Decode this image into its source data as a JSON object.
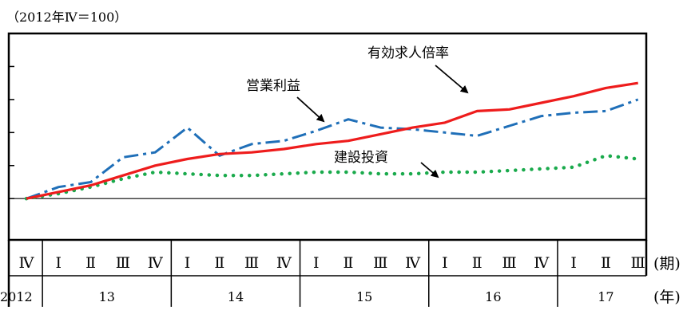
{
  "chart_data": {
    "type": "line",
    "title": "",
    "unit_label": "（2012年Ⅳ＝100）",
    "xlabel": "",
    "ylabel": "",
    "x_quarter_labels": [
      "Ⅳ",
      "Ⅰ",
      "Ⅱ",
      "Ⅲ",
      "Ⅳ",
      "Ⅰ",
      "Ⅱ",
      "Ⅲ",
      "Ⅳ",
      "Ⅰ",
      "Ⅱ",
      "Ⅲ",
      "Ⅳ",
      "Ⅰ",
      "Ⅱ",
      "Ⅲ",
      "Ⅳ",
      "Ⅰ",
      "Ⅱ",
      "Ⅲ"
    ],
    "x_year_labels": [
      "2012",
      "13",
      "14",
      "15",
      "16",
      "17"
    ],
    "x_year_start_index": [
      0,
      1,
      5,
      9,
      13,
      17
    ],
    "quarter_axis_suffix": "(期)",
    "year_axis_suffix": "(年)",
    "ylim": [
      75,
      200
    ],
    "yticks": [
      100,
      120,
      140,
      160,
      180
    ],
    "baseline": 100,
    "grid": false,
    "series": [
      {
        "name": "有効求人倍率",
        "color": "#ee1c1c",
        "style": "solid",
        "values": [
          100,
          104,
          108,
          114,
          120,
          124,
          127,
          128,
          130,
          133,
          135,
          139,
          143,
          146,
          153,
          154,
          158,
          162,
          167,
          170
        ]
      },
      {
        "name": "営業利益",
        "color": "#1f6fb8",
        "style": "dashdot",
        "values": [
          100,
          107,
          110,
          125,
          128,
          143,
          126,
          133,
          135,
          141,
          148,
          143,
          142,
          140,
          138,
          144,
          150,
          152,
          153,
          160
        ]
      },
      {
        "name": "建設投資",
        "color": "#1aaa4c",
        "style": "dotted",
        "values": [
          100,
          103,
          107,
          112,
          116,
          115,
          114,
          114,
          115,
          116,
          116,
          115,
          115,
          116,
          116,
          117,
          118,
          119,
          126,
          124
        ]
      }
    ],
    "annotations": [
      {
        "text": "有効求人倍率",
        "series_index": 0,
        "point_index": 14
      },
      {
        "text": "営業利益",
        "series_index": 1,
        "point_index": 9.7
      },
      {
        "text": "建設投資",
        "series_index": 2,
        "point_index": 13.1
      }
    ]
  }
}
